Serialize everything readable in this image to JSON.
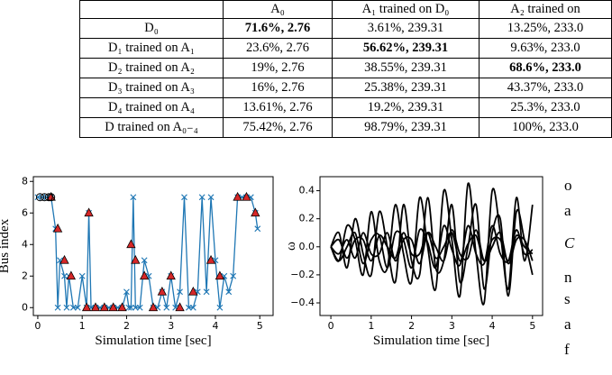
{
  "table": {
    "header": [
      "",
      "A₀",
      "A₁ trained on D₀",
      "A₂ trained on"
    ],
    "rows": [
      [
        "D₀",
        "71.6%, 2.76",
        "3.61%, 239.31",
        "13.25%, 233.0"
      ],
      [
        "D₁ trained on A₁",
        "23.6%, 2.76",
        "56.62%, 239.31",
        "9.63%, 233.0"
      ],
      [
        "D₂ trained on A₂",
        "19%, 2.76",
        "38.55%, 239.31",
        "68.6%, 233.0"
      ],
      [
        "D₃ trained on A₃",
        "16%, 2.76",
        "25.38%, 239.31",
        "43.37%, 233.0"
      ],
      [
        "D₄ trained on A₄",
        "13.61%, 2.76",
        "19.2%, 239.31",
        "25.3%, 233.0"
      ],
      [
        "D trained on A₀₋₄",
        "75.42%, 2.76",
        "98.79%, 239.31",
        "100%, 233.0"
      ]
    ]
  },
  "chart_data": [
    {
      "type": "line",
      "x_label": "Simulation time [sec]",
      "y_label": "Bus index",
      "xlim": [
        -0.1,
        5.3
      ],
      "ylim": [
        -0.5,
        8.3
      ],
      "xticks": [
        0,
        1,
        2,
        3,
        4,
        5
      ],
      "yticks": [
        0,
        2,
        4,
        6,
        8
      ],
      "series": [
        {
          "type": "line",
          "marker": "x",
          "color": "#1f77b4",
          "x": [
            0.0,
            0.1,
            0.2,
            0.3,
            0.4,
            0.45,
            0.5,
            0.6,
            0.65,
            0.7,
            0.8,
            0.9,
            1.0,
            1.1,
            1.15,
            1.2,
            1.3,
            1.4,
            1.5,
            1.6,
            1.7,
            1.8,
            1.9,
            2.0,
            2.05,
            2.1,
            2.15,
            2.2,
            2.3,
            2.4,
            2.5,
            2.6,
            2.7,
            2.8,
            2.9,
            3.0,
            3.1,
            3.2,
            3.3,
            3.4,
            3.5,
            3.6,
            3.7,
            3.8,
            3.9,
            4.0,
            4.1,
            4.2,
            4.3,
            4.4,
            4.5,
            4.6,
            4.7,
            4.8,
            4.9,
            4.95
          ],
          "values": [
            7,
            7,
            7,
            7,
            5,
            0,
            3,
            2,
            0,
            2,
            0,
            0,
            2,
            0,
            6,
            0,
            0,
            0,
            0,
            0,
            0,
            0,
            0,
            1,
            0,
            0,
            7,
            0,
            0,
            3,
            2,
            0,
            0,
            1,
            0,
            2,
            0,
            1,
            7,
            0,
            0,
            1,
            7,
            1,
            7,
            3,
            0,
            2,
            1,
            2,
            7,
            7,
            7,
            7,
            6,
            5
          ]
        },
        {
          "type": "scatter",
          "marker": "triangle",
          "color": "#d62728",
          "x": [
            0.3,
            0.45,
            0.6,
            0.75,
            1.1,
            1.15,
            1.3,
            1.5,
            1.7,
            1.9,
            2.1,
            2.2,
            2.4,
            2.6,
            2.8,
            3.0,
            3.2,
            3.5,
            3.9,
            4.1,
            4.5,
            4.7,
            4.9
          ],
          "values": [
            7,
            5,
            3,
            2,
            0,
            6,
            0,
            0,
            0,
            0,
            4,
            3,
            2,
            0,
            1,
            2,
            0,
            1,
            3,
            2,
            7,
            7,
            6
          ]
        },
        {
          "type": "scatter",
          "marker": "circle-open",
          "color": "#000000",
          "x": [
            0.05,
            0.15,
            0.25,
            0.3
          ],
          "values": [
            7,
            7,
            7,
            7
          ]
        }
      ]
    },
    {
      "type": "line",
      "x_label": "Simulation time [sec]",
      "y_label": "ω",
      "xlim": [
        -0.27,
        5.25
      ],
      "ylim": [
        -0.49,
        0.5
      ],
      "xticks": [
        0,
        1,
        2,
        3,
        4,
        5
      ],
      "yticks": [
        {
          "value": -0.4,
          "label": "−0.4"
        },
        {
          "value": -0.2,
          "label": "−0.2"
        },
        {
          "value": 0,
          "label": "0.0"
        },
        0.2,
        0.4
      ],
      "x": [
        0,
        0.2,
        0.4,
        0.6,
        0.8,
        1.0,
        1.2,
        1.4,
        1.6,
        1.8,
        2.0,
        2.2,
        2.4,
        2.6,
        2.8,
        3.0,
        3.2,
        3.4,
        3.6,
        3.8,
        4.0,
        4.2,
        4.4,
        4.6,
        4.8,
        5.0
      ],
      "series": [
        {
          "type": "line",
          "color": "#000000",
          "values": [
            0,
            -0.1,
            0.15,
            0.05,
            -0.2,
            0.25,
            -0.1,
            -0.15,
            0.3,
            -0.05,
            -0.25,
            0.35,
            0,
            -0.3,
            0.4,
            0.05,
            -0.35,
            0.45,
            -0.05,
            -0.4,
            0.4,
            0.1,
            -0.3,
            0.35,
            -0.1,
            0.3
          ]
        },
        {
          "type": "line",
          "color": "#000000",
          "values": [
            0,
            0.1,
            -0.15,
            0.2,
            -0.05,
            -0.2,
            0.25,
            0,
            -0.25,
            0.3,
            -0.1,
            -0.2,
            0.35,
            -0.15,
            -0.1,
            0.3,
            -0.25,
            0,
            0.3,
            -0.3,
            0.1,
            0.2,
            -0.35,
            0.25,
            0.05,
            -0.2
          ]
        },
        {
          "type": "line",
          "color": "#000000",
          "values": [
            0,
            -0.05,
            0.05,
            -0.08,
            0.1,
            -0.05,
            -0.05,
            0.1,
            -0.1,
            0.05,
            0.05,
            -0.12,
            0.1,
            0,
            -0.1,
            0.12,
            -0.05,
            -0.08,
            0.12,
            -0.1,
            0,
            0.1,
            -0.12,
            0.05,
            0.05,
            -0.1
          ]
        },
        {
          "type": "line",
          "color": "#000000",
          "values": [
            0,
            0.05,
            -0.08,
            0.05,
            0.05,
            -0.1,
            0.08,
            0,
            -0.08,
            0.1,
            -0.05,
            -0.05,
            0.1,
            -0.08,
            0,
            0.1,
            -0.1,
            0.02,
            0.08,
            -0.1,
            0.05,
            0.05,
            -0.1,
            0.08,
            0,
            -0.05
          ]
        },
        {
          "type": "line",
          "color": "#000000",
          "values": [
            0,
            -0.1,
            0,
            0.1,
            -0.12,
            0.05,
            0.08,
            -0.15,
            0.1,
            0.05,
            -0.15,
            0.12,
            0.03,
            -0.15,
            0.15,
            -0.02,
            -0.13,
            0.15,
            -0.05,
            -0.12,
            0.15,
            -0.05,
            -0.1,
            0.12,
            -0.05,
            -0.02
          ]
        }
      ]
    }
  ],
  "side_text": [
    "o",
    "a",
    "C",
    "n",
    "s",
    "a",
    "f"
  ]
}
